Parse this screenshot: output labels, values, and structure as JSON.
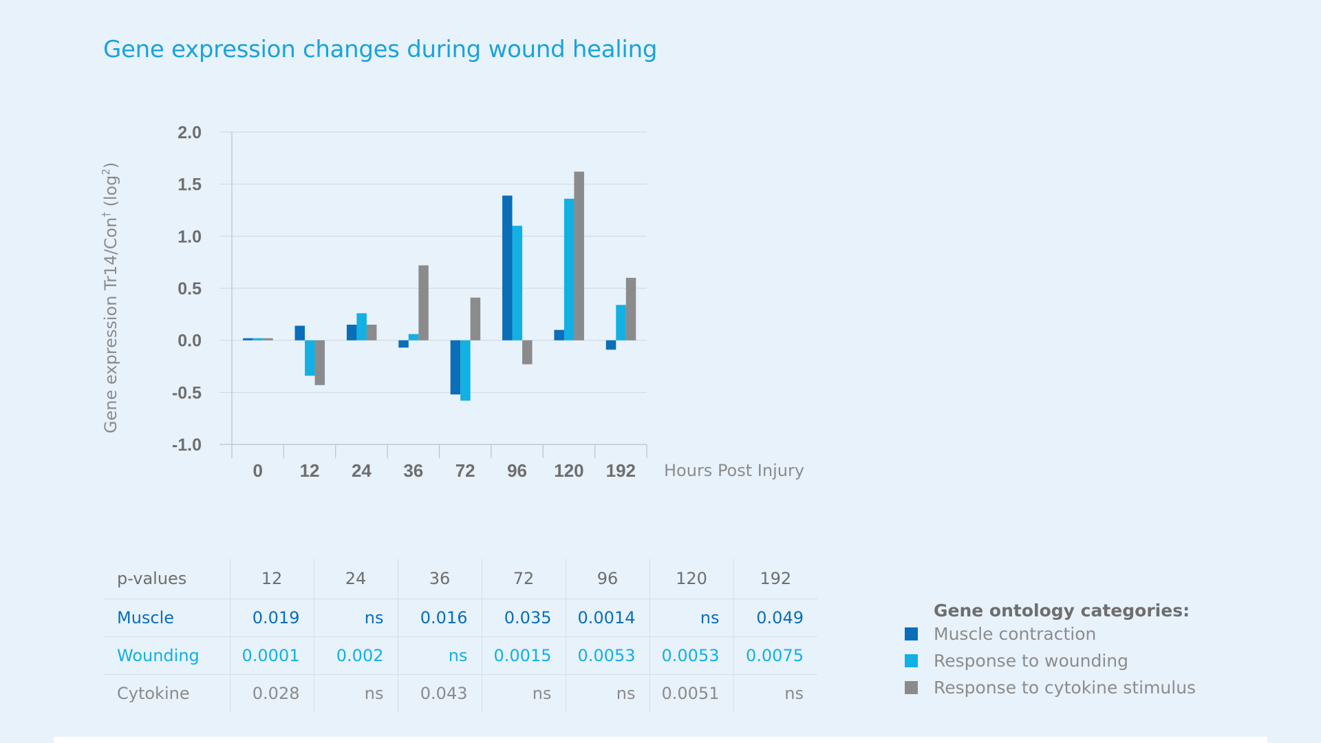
{
  "title": "Gene expression changes during wound healing",
  "colors": {
    "muscle": "#0a6eb8",
    "wounding": "#12b0e3",
    "cytokine": "#8b8b8b",
    "gridline": "#cdd6df",
    "axis": "#b8c2cc"
  },
  "chart_data": {
    "type": "bar",
    "categories": [
      "0",
      "12",
      "24",
      "36",
      "72",
      "96",
      "120",
      "192"
    ],
    "series": [
      {
        "name": "Muscle contraction",
        "color_key": "muscle",
        "values": [
          0.02,
          0.14,
          0.15,
          -0.07,
          -0.52,
          1.39,
          0.1,
          -0.09
        ]
      },
      {
        "name": "Response to wounding",
        "color_key": "wounding",
        "values": [
          0.02,
          -0.34,
          0.26,
          0.06,
          -0.58,
          1.1,
          1.36,
          0.34
        ]
      },
      {
        "name": "Response to cytokine stimulus",
        "color_key": "cytokine",
        "values": [
          0.02,
          -0.43,
          0.15,
          0.72,
          0.41,
          -0.23,
          1.62,
          0.6
        ]
      }
    ],
    "ylim": [
      -1.0,
      2.0
    ],
    "yticks": [
      "2.0",
      "1.5",
      "1.0",
      "0.5",
      "0.0",
      "-0.5",
      "-1.0"
    ],
    "ytick_values": [
      2.0,
      1.5,
      1.0,
      0.5,
      0.0,
      -0.5,
      -1.0
    ],
    "ylabel": "Gene expression Tr14/Con",
    "ylabel_sup": "†",
    "ylabel_suffix": " (log",
    "ylabel_suffix_sup": "2",
    "ylabel_close": ")",
    "xlabel": "Hours Post Injury",
    "grid": true
  },
  "pvalues": {
    "header_label": "p-values",
    "columns": [
      "12",
      "24",
      "36",
      "72",
      "96",
      "120",
      "192"
    ],
    "rows": [
      {
        "label": "Muscle",
        "color_key": "muscle",
        "values": [
          "0.019",
          "ns",
          "0.016",
          "0.035",
          "0.0014",
          "ns",
          "0.049"
        ]
      },
      {
        "label": "Wounding",
        "color_key": "wounding",
        "values": [
          "0.0001",
          "0.002",
          "ns",
          "0.0015",
          "0.0053",
          "0.0053",
          "0.0075"
        ]
      },
      {
        "label": "Cytokine",
        "color_key": "cytokine",
        "values": [
          "0.028",
          "ns",
          "0.043",
          "ns",
          "ns",
          "0.0051",
          "ns"
        ]
      }
    ]
  },
  "legend": {
    "title": "Gene ontology categories:",
    "items": [
      {
        "label": "Muscle contraction",
        "color_key": "muscle"
      },
      {
        "label": "Response to wounding",
        "color_key": "wounding"
      },
      {
        "label": "Response to cytokine stimulus",
        "color_key": "cytokine"
      }
    ]
  }
}
